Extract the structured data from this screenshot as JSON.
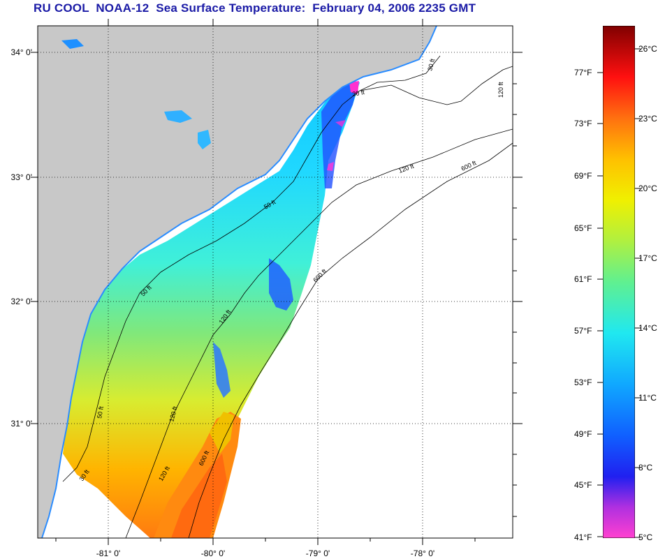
{
  "title": "RU COOL  NOAA-12  Sea Surface Temperature:  February 04, 2006 2235 GMT",
  "map": {
    "lat_labels": [
      "34° 0'",
      "33° 0'",
      "32° 0'",
      "31° 0'"
    ],
    "lon_labels": [
      "-81° 0'",
      "-80° 0'",
      "-79° 0'",
      "-78° 0'"
    ],
    "isobaths": [
      "30 ft",
      "50 ft",
      "120 ft",
      "600 ft"
    ],
    "colors": {
      "land": "#c8c8c8",
      "no_data": "#ffffff",
      "grid": "#000000"
    }
  },
  "colorbar": {
    "fahrenheit_labels": [
      "77°F",
      "73°F",
      "69°F",
      "65°F",
      "61°F",
      "57°F",
      "53°F",
      "49°F",
      "45°F",
      "41°F"
    ],
    "celsius_labels": [
      "26°C",
      "23°C",
      "20°C",
      "17°C",
      "14°C",
      "11°C",
      "8°C",
      "5°C"
    ],
    "range_c": [
      5,
      27
    ]
  }
}
